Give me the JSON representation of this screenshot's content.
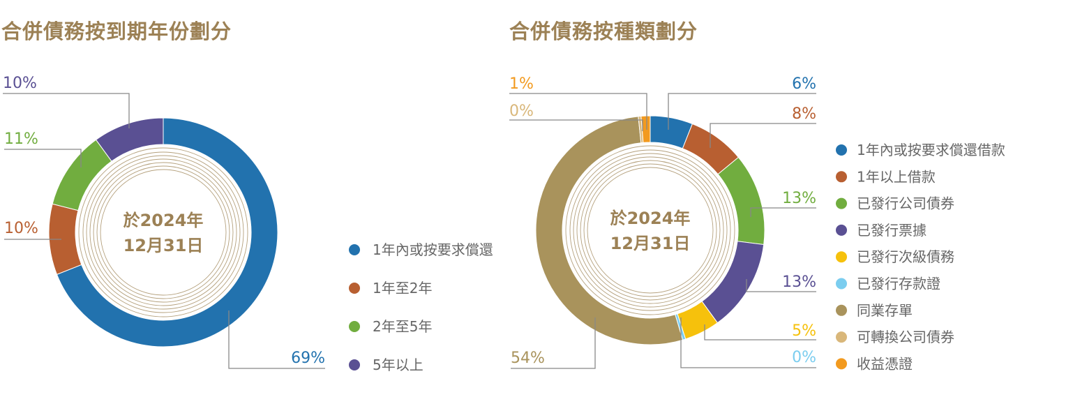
{
  "chart_data": [
    {
      "type": "donut",
      "title": "合併債務按到期年份劃分",
      "center_label": [
        "於2024年",
        "12月31日"
      ],
      "categories": [
        "1年內或按要求償還",
        "1年至2年",
        "2年至5年",
        "5年以上"
      ],
      "values": [
        69,
        10,
        11,
        10
      ],
      "labels": [
        "69%",
        "10%",
        "11%",
        "10%"
      ],
      "colors": [
        "#2272ae",
        "#b85f31",
        "#71ad3f",
        "#5a5093"
      ],
      "legend_position": "right"
    },
    {
      "type": "donut",
      "title": "合併債務按種類劃分",
      "center_label": [
        "於2024年",
        "12月31日"
      ],
      "categories": [
        "1年內或按要求償還借款",
        "1年以上借款",
        "已發行公司債券",
        "已發行票據",
        "已發行次級債務",
        "已發行存款證",
        "同業存單",
        "可轉換公司債券",
        "收益憑證"
      ],
      "values": [
        6,
        8,
        13,
        13,
        5,
        0,
        54,
        0,
        1
      ],
      "labels": [
        "6%",
        "8%",
        "13%",
        "13%",
        "5%",
        "0%",
        "54%",
        "0%",
        "1%"
      ],
      "colors": [
        "#2272ae",
        "#b85f31",
        "#71ad3f",
        "#5a5093",
        "#f6c10c",
        "#7bcdef",
        "#a9935c",
        "#d9b77a",
        "#f29a1f"
      ],
      "legend_position": "right"
    }
  ]
}
